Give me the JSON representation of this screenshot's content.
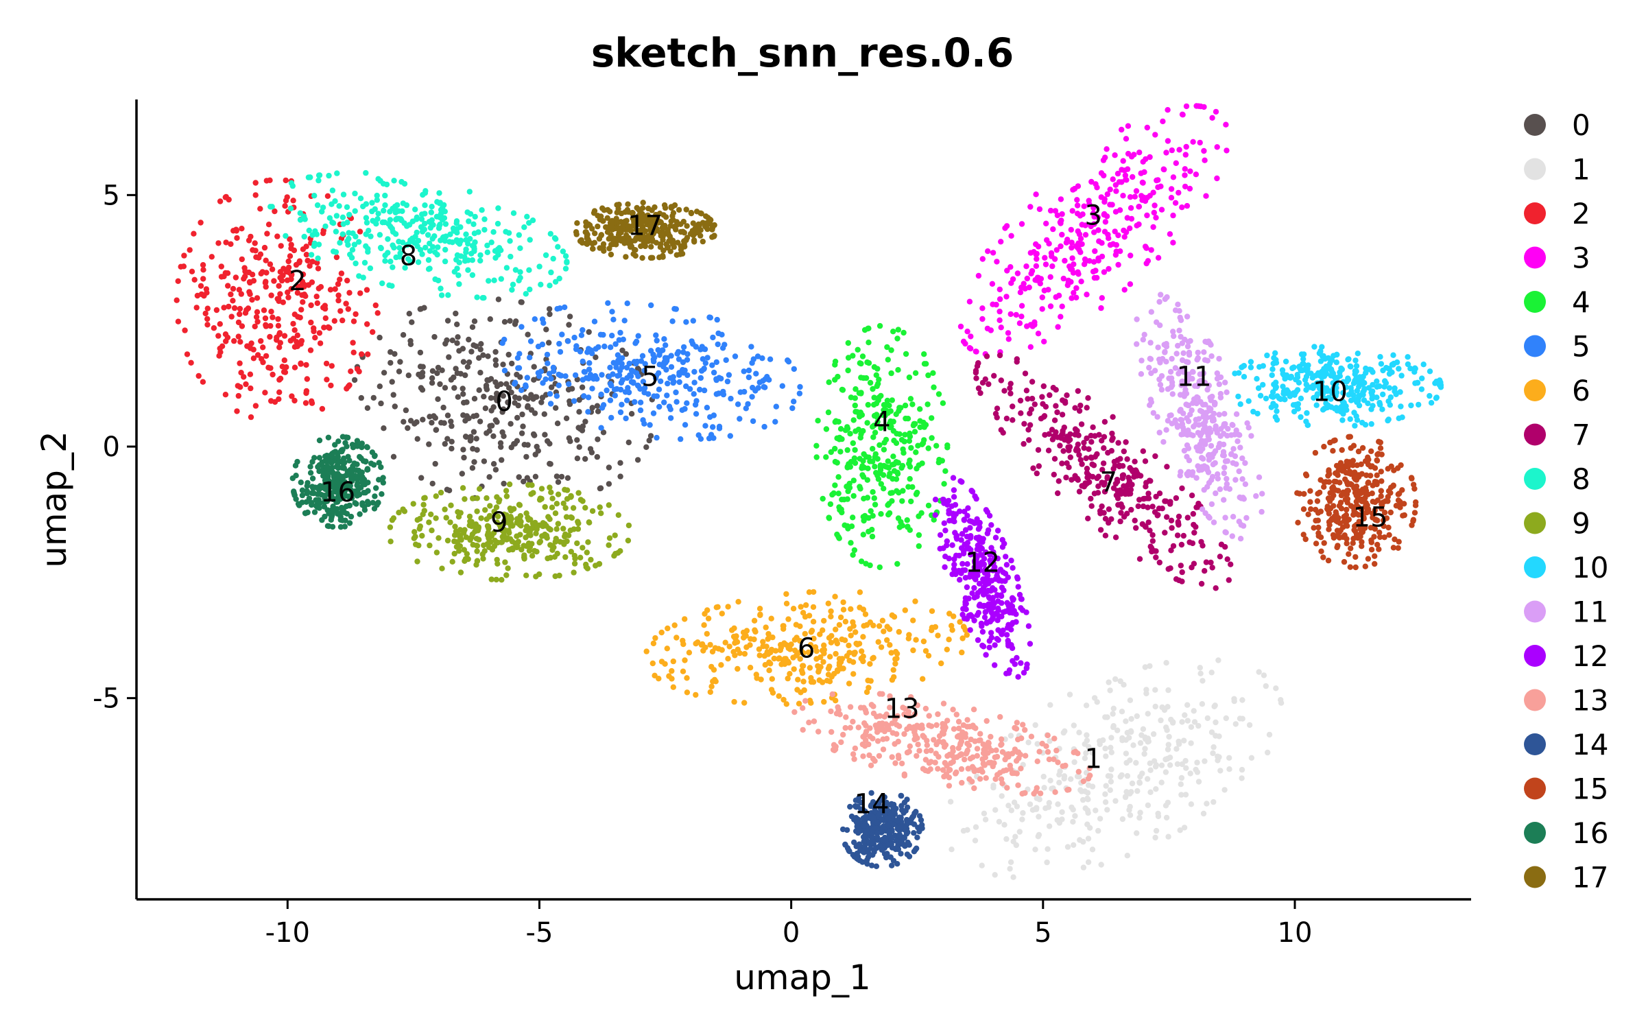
{
  "chart_data": {
    "type": "scatter",
    "title": "sketch_snn_res.0.6",
    "xlabel": "umap_1",
    "ylabel": "umap_2",
    "xlim": [
      -13.0,
      13.5
    ],
    "ylim": [
      -9.0,
      6.9
    ],
    "x_ticks": [
      -10,
      -5,
      0,
      5,
      10
    ],
    "x_tick_labels": [
      "-10",
      "-5",
      "0",
      "5",
      "10"
    ],
    "y_ticks": [
      -5,
      0,
      5
    ],
    "y_tick_labels": [
      "-5",
      "0",
      "5"
    ],
    "grid": false,
    "legend_position": "right",
    "clusters": [
      {
        "name": "0",
        "color": "#58504F",
        "label_x": -5.7,
        "label_y": 0.9,
        "cx": -5.7,
        "cy": 0.9,
        "rx": 3.0,
        "ry": 2.0,
        "angle": -10
      },
      {
        "name": "1",
        "color": "#E2E2E2",
        "label_x": 6.0,
        "label_y": -6.2,
        "cx": 6.4,
        "cy": -6.4,
        "rx": 3.6,
        "ry": 1.7,
        "angle": 25
      },
      {
        "name": "2",
        "color": "#F0222E",
        "label_x": -9.8,
        "label_y": 3.3,
        "cx": -10.2,
        "cy": 2.9,
        "rx": 2.0,
        "ry": 2.4,
        "angle": 0
      },
      {
        "name": "3",
        "color": "#FF00F5",
        "label_x": 6.0,
        "label_y": 4.6,
        "cx": 6.0,
        "cy": 4.3,
        "rx": 3.4,
        "ry": 1.3,
        "angle": 42
      },
      {
        "name": "4",
        "color": "#1AF235",
        "label_x": 1.8,
        "label_y": 0.5,
        "cx": 1.8,
        "cy": 0.0,
        "rx": 1.3,
        "ry": 2.4,
        "angle": 0
      },
      {
        "name": "5",
        "color": "#3082FB",
        "label_x": -2.8,
        "label_y": 1.4,
        "cx": -2.8,
        "cy": 1.5,
        "rx": 3.0,
        "ry": 1.3,
        "angle": -8
      },
      {
        "name": "6",
        "color": "#FCAD1C",
        "label_x": 0.3,
        "label_y": -4.0,
        "cx": 0.3,
        "cy": -4.0,
        "rx": 3.2,
        "ry": 1.1,
        "angle": 4
      },
      {
        "name": "7",
        "color": "#B0006B",
        "label_x": 6.3,
        "label_y": -0.7,
        "cx": 6.2,
        "cy": -0.5,
        "rx": 3.3,
        "ry": 0.95,
        "angle": -42
      },
      {
        "name": "8",
        "color": "#1CF5CC",
        "label_x": -7.6,
        "label_y": 3.8,
        "cx": -7.4,
        "cy": 4.2,
        "rx": 3.0,
        "ry": 1.1,
        "angle": -12
      },
      {
        "name": "9",
        "color": "#8DAA1E",
        "label_x": -5.8,
        "label_y": -1.5,
        "cx": -5.6,
        "cy": -1.7,
        "rx": 2.4,
        "ry": 0.95,
        "angle": 0
      },
      {
        "name": "10",
        "color": "#23D8FF",
        "label_x": 10.7,
        "label_y": 1.1,
        "cx": 10.8,
        "cy": 1.2,
        "rx": 2.1,
        "ry": 0.8,
        "angle": 0
      },
      {
        "name": "11",
        "color": "#DA9EF6",
        "label_x": 8.0,
        "label_y": 1.4,
        "cx": 8.1,
        "cy": 0.6,
        "rx": 2.6,
        "ry": 0.85,
        "angle": -68
      },
      {
        "name": "12",
        "color": "#AA00FF",
        "label_x": 3.8,
        "label_y": -2.3,
        "cx": 3.8,
        "cy": -2.6,
        "rx": 2.1,
        "ry": 0.65,
        "angle": -70
      },
      {
        "name": "13",
        "color": "#F8A09A",
        "label_x": 2.2,
        "label_y": -5.2,
        "cx": 3.0,
        "cy": -5.9,
        "rx": 3.0,
        "ry": 0.8,
        "angle": -12
      },
      {
        "name": "14",
        "color": "#2E5597",
        "label_x": 1.6,
        "label_y": -7.1,
        "cx": 1.8,
        "cy": -7.6,
        "rx": 0.8,
        "ry": 0.75,
        "angle": 0
      },
      {
        "name": "15",
        "color": "#C1441C",
        "label_x": 11.5,
        "label_y": -1.4,
        "cx": 11.2,
        "cy": -1.1,
        "rx": 1.2,
        "ry": 1.3,
        "angle": 0
      },
      {
        "name": "16",
        "color": "#1C7E56",
        "label_x": -9.0,
        "label_y": -0.9,
        "cx": -9.0,
        "cy": -0.7,
        "rx": 0.9,
        "ry": 0.9,
        "angle": -20
      },
      {
        "name": "17",
        "color": "#8A6C12",
        "label_x": -2.9,
        "label_y": 4.4,
        "cx": -2.9,
        "cy": 4.3,
        "rx": 1.4,
        "ry": 0.55,
        "angle": 0
      }
    ]
  }
}
